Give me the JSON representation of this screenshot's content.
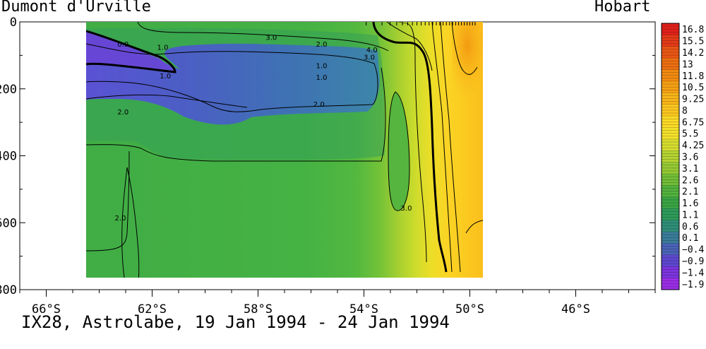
{
  "figure": {
    "left_title": "Dumont d'Urville",
    "right_title": "Hobart",
    "caption": "IX28, Astrolabe, 19 Jan 1994 - 24 Jan 1994"
  },
  "chart_data": {
    "type": "heatmap",
    "x_axis": {
      "range": [
        -67,
        -43
      ],
      "ticks": [
        -66,
        -62,
        -58,
        -54,
        -50,
        -46
      ],
      "tick_labels": [
        "66°S",
        "62°S",
        "58°S",
        "54°S",
        "50°S",
        "46°S"
      ],
      "data_extent": [
        -64.5,
        -49.8
      ]
    },
    "y_axis": {
      "range": [
        0,
        800
      ],
      "inverted": true,
      "ticks": [
        0,
        200,
        400,
        600,
        800
      ],
      "tick_labels": [
        "0",
        "200",
        "400",
        "600",
        "800"
      ],
      "data_extent": [
        0,
        765
      ]
    },
    "colorbar": {
      "labels": [
        "16.8",
        "15.5",
        "14.2",
        "13",
        "11.8",
        "10.5",
        "9.25",
        "8",
        "6.75",
        "5.5",
        "4.25",
        "3.6",
        "3.1",
        "2.6",
        "2.1",
        "1.6",
        "1.1",
        "0.6",
        "0.1",
        "−0.4",
        "−0.9",
        "−1.4",
        "−1.9"
      ],
      "colors": [
        "#e0201a",
        "#e33a17",
        "#e85514",
        "#ed6f12",
        "#f28a10",
        "#f5a014",
        "#f8b41a",
        "#fbc620",
        "#fcda26",
        "#f3e02a",
        "#d5dc2e",
        "#b4d332",
        "#95c934",
        "#72bd37",
        "#52b23c",
        "#3ba444",
        "#2e9a5a",
        "#2f8e78",
        "#3a7c98",
        "#4a63b7",
        "#5e47cf",
        "#7c35dd",
        "#9a2de6"
      ]
    },
    "contour_labels": [
      {
        "text": "0.0",
        "x": -63.1,
        "y": 65
      },
      {
        "text": "1.0",
        "x": -61.6,
        "y": 75
      },
      {
        "text": "3.0",
        "x": -57.5,
        "y": 45
      },
      {
        "text": "2.0",
        "x": -55.6,
        "y": 65
      },
      {
        "text": "4.0",
        "x": -53.7,
        "y": 82
      },
      {
        "text": "3.0",
        "x": -53.8,
        "y": 105
      },
      {
        "text": "1.0",
        "x": -55.6,
        "y": 130
      },
      {
        "text": "1.0",
        "x": -55.6,
        "y": 165
      },
      {
        "text": "1.0",
        "x": -61.5,
        "y": 160
      },
      {
        "text": "2.0",
        "x": -55.7,
        "y": 245
      },
      {
        "text": "2.0",
        "x": -63.1,
        "y": 268
      },
      {
        "text": "2.0",
        "x": -63.2,
        "y": 585
      },
      {
        "text": "3.0",
        "x": -52.4,
        "y": 555
      }
    ]
  }
}
